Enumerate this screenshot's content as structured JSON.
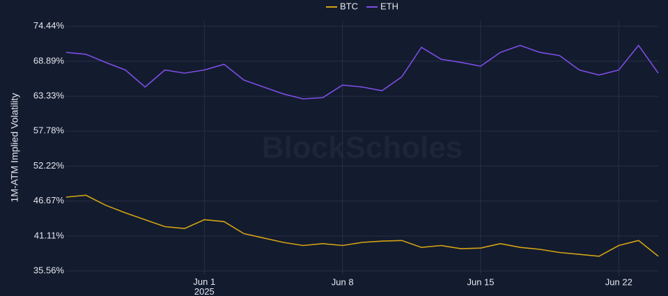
{
  "chart_data": {
    "type": "line",
    "watermark": "BlockScholes",
    "y_label": "1M-ATM Implied Volatility",
    "x": [
      "2025-05-25",
      "2025-05-26",
      "2025-05-27",
      "2025-05-28",
      "2025-05-29",
      "2025-05-30",
      "2025-05-31",
      "2025-06-01",
      "2025-06-02",
      "2025-06-03",
      "2025-06-04",
      "2025-06-05",
      "2025-06-06",
      "2025-06-07",
      "2025-06-08",
      "2025-06-09",
      "2025-06-10",
      "2025-06-11",
      "2025-06-12",
      "2025-06-13",
      "2025-06-14",
      "2025-06-15",
      "2025-06-16",
      "2025-06-17",
      "2025-06-18",
      "2025-06-19",
      "2025-06-20",
      "2025-06-21",
      "2025-06-22",
      "2025-06-23",
      "2025-06-24"
    ],
    "series": [
      {
        "name": "BTC",
        "color": "#d4a414",
        "values": [
          47.3,
          47.6,
          46.0,
          44.8,
          43.7,
          42.6,
          42.3,
          43.7,
          43.4,
          41.5,
          40.8,
          40.1,
          39.6,
          39.9,
          39.6,
          40.1,
          40.3,
          40.4,
          39.3,
          39.6,
          39.1,
          39.2,
          39.9,
          39.3,
          39.0,
          38.5,
          38.2,
          37.9,
          39.6,
          40.4,
          37.9
        ]
      },
      {
        "name": "ETH",
        "color": "#7c4ee4",
        "values": [
          70.3,
          70.0,
          68.7,
          67.5,
          64.8,
          67.5,
          67.0,
          67.5,
          68.4,
          65.9,
          64.8,
          63.7,
          62.9,
          63.1,
          65.1,
          64.8,
          64.2,
          66.4,
          71.1,
          69.2,
          68.7,
          68.1,
          70.3,
          71.4,
          70.3,
          69.8,
          67.5,
          66.7,
          67.5,
          71.4,
          67.0
        ]
      }
    ],
    "xlim": [
      "2025-05-25",
      "2025-06-24"
    ],
    "xticks": [
      {
        "value": "2025-06-01",
        "label": "Jun 1\n2025"
      },
      {
        "value": "2025-06-08",
        "label": "Jun 8"
      },
      {
        "value": "2025-06-15",
        "label": "Jun 15"
      },
      {
        "value": "2025-06-22",
        "label": "Jun 22"
      }
    ],
    "ylim": [
      34.9,
      75.3
    ],
    "yticks": [
      {
        "value": 35.56,
        "label": "35.56%"
      },
      {
        "value": 41.11,
        "label": "41.11%"
      },
      {
        "value": 46.67,
        "label": "46.67%"
      },
      {
        "value": 52.22,
        "label": "52.22%"
      },
      {
        "value": 57.78,
        "label": "57.78%"
      },
      {
        "value": 63.33,
        "label": "63.33%"
      },
      {
        "value": 68.89,
        "label": "68.89%"
      },
      {
        "value": 74.44,
        "label": "74.44%"
      }
    ],
    "grid": true
  }
}
